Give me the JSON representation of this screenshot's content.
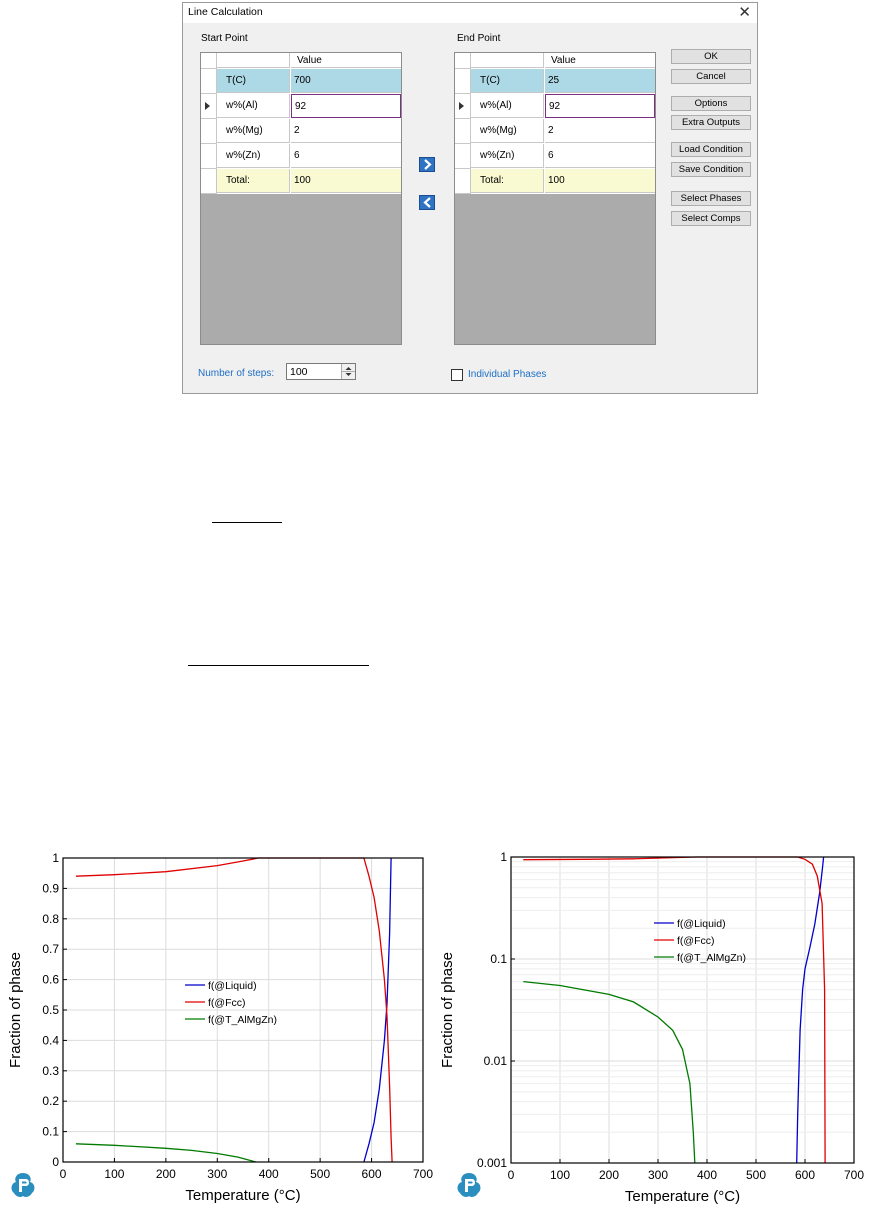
{
  "dialog": {
    "title": "Line Calculation",
    "close_glyph": "✕",
    "start": {
      "label": "Start Point",
      "value_header": "Value",
      "rows": [
        {
          "name": "T(C)",
          "value": "700"
        },
        {
          "name": "w%(Al)",
          "value": "92"
        },
        {
          "name": "w%(Mg)",
          "value": "2"
        },
        {
          "name": "w%(Zn)",
          "value": "6"
        },
        {
          "name": "Total:",
          "value": "100"
        }
      ]
    },
    "end": {
      "label": "End Point",
      "value_header": "Value",
      "rows": [
        {
          "name": "T(C)",
          "value": "25"
        },
        {
          "name": "w%(Al)",
          "value": "92"
        },
        {
          "name": "w%(Mg)",
          "value": "2"
        },
        {
          "name": "w%(Zn)",
          "value": "6"
        },
        {
          "name": "Total:",
          "value": "100"
        }
      ]
    },
    "buttons": {
      "ok": "OK",
      "cancel": "Cancel",
      "options": "Options",
      "extra_outputs": "Extra Outputs",
      "load_condition": "Load Condition",
      "save_condition": "Save Condition",
      "select_phases": "Select Phases",
      "select_comps": "Select Comps"
    },
    "steps_label": "Number of steps:",
    "steps_value": "100",
    "individual_phases_label": "Individual Phases",
    "individual_phases_checked": false,
    "accent_color": "#1e6fc6",
    "selected_row_color": "#add8e6",
    "total_row_color": "#fafad2"
  },
  "chart_data": [
    {
      "type": "line",
      "xlabel": "Temperature (°C)",
      "ylabel": "Fraction of phase",
      "xlim": [
        0,
        700
      ],
      "ylim": [
        0,
        1
      ],
      "yscale": "linear",
      "xticks": [
        "0",
        "100",
        "200",
        "300",
        "400",
        "500",
        "600",
        "700"
      ],
      "yticks": [
        "0",
        "0.1",
        "0.2",
        "0.3",
        "0.4",
        "0.5",
        "0.6",
        "0.7",
        "0.8",
        "0.9",
        "1"
      ],
      "grid": true,
      "legend_position": "center",
      "series": [
        {
          "name": "f(@Liquid)",
          "color": "#0000cc",
          "x": [
            585,
            595,
            605,
            615,
            625,
            630,
            635,
            638
          ],
          "y": [
            0,
            0.06,
            0.13,
            0.24,
            0.4,
            0.52,
            0.75,
            1.0
          ]
        },
        {
          "name": "f(@Fcc)",
          "color": "#e00000",
          "x": [
            25,
            100,
            200,
            300,
            350,
            380,
            585,
            595,
            605,
            615,
            625,
            630,
            635,
            638,
            640
          ],
          "y": [
            0.94,
            0.945,
            0.955,
            0.975,
            0.99,
            1.0,
            1.0,
            0.94,
            0.87,
            0.76,
            0.6,
            0.48,
            0.25,
            0.08,
            0
          ]
        },
        {
          "name": "f(@T_AlMgZn)",
          "color": "#007a00",
          "x": [
            25,
            100,
            200,
            250,
            300,
            340,
            360,
            375
          ],
          "y": [
            0.06,
            0.055,
            0.045,
            0.038,
            0.028,
            0.016,
            0.007,
            0
          ]
        }
      ]
    },
    {
      "type": "line",
      "xlabel": "Temperature (°C)",
      "ylabel": "Fraction of phase",
      "xlim": [
        0,
        700
      ],
      "ylim": [
        0.001,
        1
      ],
      "yscale": "log",
      "xticks": [
        "0",
        "100",
        "200",
        "300",
        "400",
        "500",
        "600",
        "700"
      ],
      "yticks": [
        "0.001",
        "0.01",
        "0.1",
        "1"
      ],
      "grid": true,
      "legend_position": "center",
      "series": [
        {
          "name": "f(@Liquid)",
          "color": "#0000cc",
          "x": [
            583,
            585,
            590,
            595,
            600,
            610,
            620,
            630,
            636,
            638
          ],
          "y": [
            0.001,
            0.003,
            0.02,
            0.05,
            0.08,
            0.13,
            0.22,
            0.45,
            0.8,
            1.0
          ]
        },
        {
          "name": "f(@Fcc)",
          "color": "#e00000",
          "x": [
            25,
            150,
            250,
            350,
            380,
            585,
            600,
            615,
            625,
            635,
            640,
            641
          ],
          "y": [
            0.94,
            0.95,
            0.96,
            0.99,
            1.0,
            1.0,
            0.95,
            0.85,
            0.65,
            0.35,
            0.05,
            0.001
          ]
        },
        {
          "name": "f(@T_AlMgZn)",
          "color": "#007a00",
          "x": [
            25,
            100,
            200,
            250,
            300,
            330,
            350,
            365,
            372,
            375
          ],
          "y": [
            0.06,
            0.055,
            0.045,
            0.038,
            0.027,
            0.02,
            0.013,
            0.006,
            0.002,
            0.001
          ]
        }
      ]
    }
  ]
}
